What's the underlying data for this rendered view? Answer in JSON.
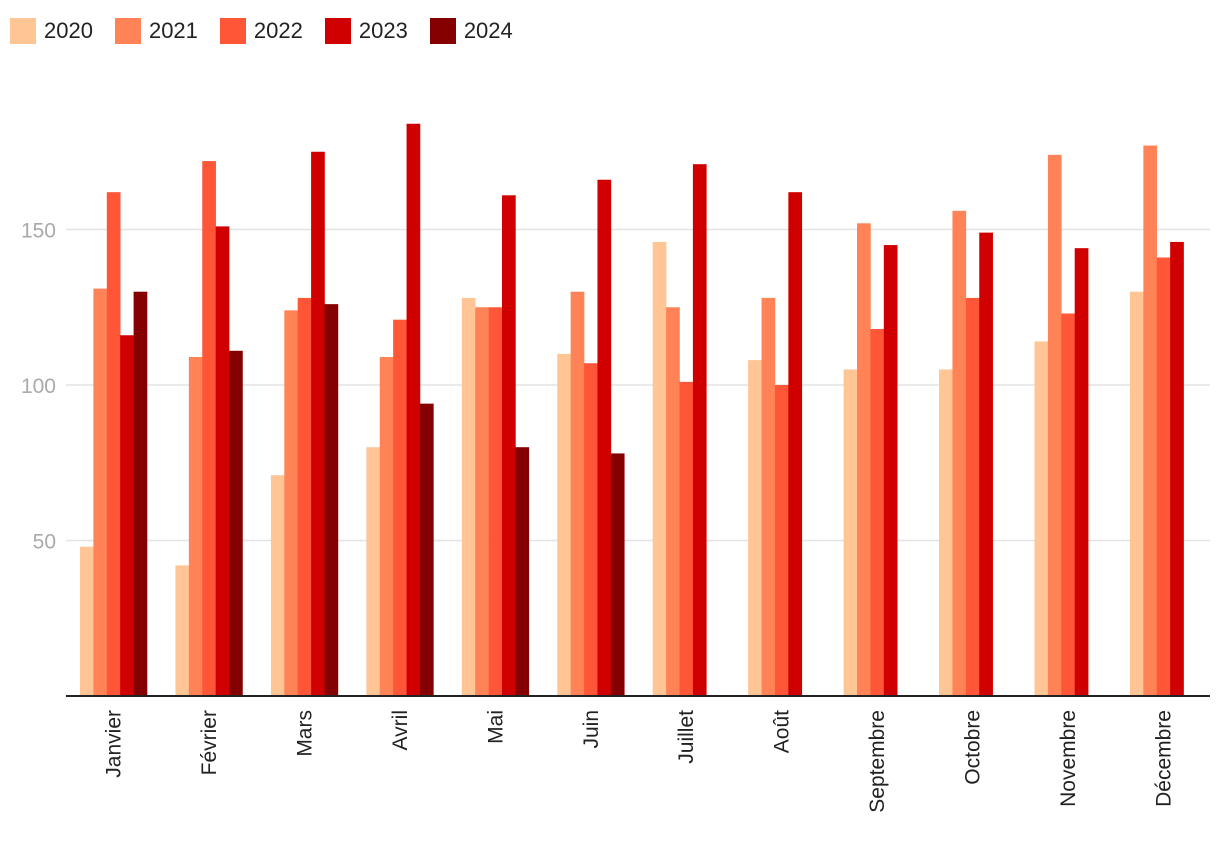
{
  "chart_data": {
    "type": "bar",
    "categories": [
      "Janvier",
      "Février",
      "Mars",
      "Avril",
      "Mai",
      "Juin",
      "Juillet",
      "Août",
      "Septembre",
      "Octobre",
      "Novembre",
      "Décembre"
    ],
    "series": [
      {
        "name": "2020",
        "color": "#ffc594",
        "values": [
          48,
          42,
          71,
          80,
          128,
          110,
          146,
          108,
          105,
          105,
          114,
          130
        ]
      },
      {
        "name": "2021",
        "color": "#ff8357",
        "values": [
          131,
          109,
          124,
          109,
          125,
          130,
          125,
          128,
          152,
          156,
          174,
          177
        ]
      },
      {
        "name": "2022",
        "color": "#ff5638",
        "values": [
          162,
          172,
          128,
          121,
          125,
          107,
          101,
          100,
          118,
          128,
          123,
          141
        ]
      },
      {
        "name": "2023",
        "color": "#d10000",
        "values": [
          116,
          151,
          175,
          184,
          161,
          166,
          171,
          162,
          145,
          149,
          144,
          146
        ]
      },
      {
        "name": "2024",
        "color": "#850000",
        "values": [
          130,
          111,
          126,
          94,
          80,
          78,
          null,
          null,
          null,
          null,
          null,
          null
        ]
      }
    ],
    "yticks": [
      50,
      100,
      150
    ],
    "ylim": [
      0,
      200
    ],
    "grid": true,
    "legend_position": "top-left",
    "title": "",
    "xlabel": "",
    "ylabel": ""
  }
}
